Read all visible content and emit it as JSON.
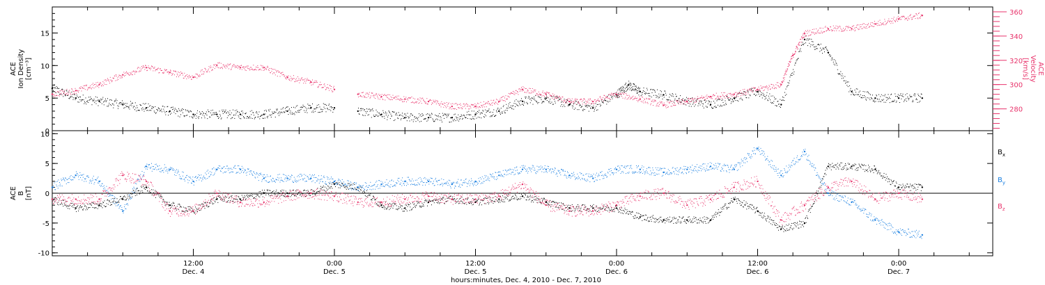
{
  "colors": {
    "black": "#000000",
    "red": "#e8336b",
    "blue": "#1a7fe0"
  },
  "x_axis": {
    "label": "hours:minutes, Dec.  4, 2010 - Dec.  7, 2010",
    "range_hours": [
      0,
      80
    ],
    "ticks": [
      {
        "hour": 12,
        "time": "12:00",
        "date": "Dec. 4"
      },
      {
        "hour": 24,
        "time": "0:00",
        "date": "Dec. 5"
      },
      {
        "hour": 36,
        "time": "12:00",
        "date": "Dec. 5"
      },
      {
        "hour": 48,
        "time": "0:00",
        "date": "Dec. 6"
      },
      {
        "hour": 60,
        "time": "12:00",
        "date": "Dec. 6"
      },
      {
        "hour": 72,
        "time": "0:00",
        "date": "Dec. 7"
      }
    ]
  },
  "chart_data": [
    {
      "type": "scatter",
      "panel": "top",
      "left_axis": {
        "title_lines": [
          "ACE",
          "Ion Density",
          "[cm⁻³]"
        ],
        "ylim": [
          0,
          19
        ],
        "ticks": [
          0,
          5,
          10,
          15
        ]
      },
      "right_axis": {
        "title_lines": [
          "ACE",
          "Velocity",
          "[km/s]"
        ],
        "ylim": [
          262,
          364
        ],
        "ticks": [
          280,
          300,
          320,
          340,
          360
        ]
      },
      "series": [
        {
          "axis": "left",
          "color": "#000000",
          "x": [
            0,
            2,
            4,
            6,
            8,
            10,
            12,
            14,
            16,
            18,
            20,
            22,
            24,
            26,
            28,
            30,
            32,
            34,
            36,
            38,
            40,
            42,
            44,
            46,
            48,
            49,
            50,
            52,
            54,
            56,
            58,
            60,
            62,
            64,
            66,
            68,
            70,
            72,
            74
          ],
          "y": [
            6.5,
            5,
            4.5,
            4,
            3.5,
            3,
            2.5,
            2.5,
            2.5,
            2.5,
            3,
            3.5,
            3.5,
            3,
            2.5,
            2,
            2,
            2,
            2.5,
            3,
            4.5,
            5,
            4,
            3.5,
            5.5,
            7,
            6,
            5.5,
            4.5,
            4,
            5,
            6,
            4,
            14,
            12,
            6,
            5,
            5,
            5
          ],
          "gaps_after": [
            24
          ]
        },
        {
          "axis": "right",
          "color": "#e8336b",
          "x": [
            0,
            2,
            4,
            6,
            8,
            10,
            12,
            14,
            16,
            18,
            20,
            22,
            24,
            26,
            28,
            30,
            32,
            34,
            36,
            38,
            40,
            42,
            44,
            46,
            48,
            50,
            52,
            54,
            56,
            58,
            60,
            62,
            63,
            64,
            66,
            68,
            70,
            72,
            74
          ],
          "y": [
            292,
            295,
            300,
            308,
            314,
            310,
            306,
            316,
            314,
            314,
            306,
            302,
            296,
            292,
            290,
            288,
            286,
            282,
            282,
            286,
            296,
            292,
            286,
            286,
            292,
            288,
            283,
            286,
            290,
            292,
            296,
            300,
            324,
            342,
            346,
            346,
            350,
            354,
            357
          ],
          "gaps_after": [
            24
          ]
        }
      ]
    },
    {
      "type": "scatter",
      "panel": "bottom",
      "left_axis": {
        "title_lines": [
          "ACE",
          "B",
          "[nT]"
        ],
        "ylim": [
          -10.5,
          10.5
        ],
        "ticks": [
          -10,
          -5,
          0,
          5,
          10
        ]
      },
      "legend": {
        "placement": "right",
        "entries": [
          {
            "base": "B",
            "sub": "x",
            "color": "#000000"
          },
          {
            "base": "B",
            "sub": "y",
            "color": "#1a7fe0"
          },
          {
            "base": "B",
            "sub": "z",
            "color": "#e8336b"
          }
        ]
      },
      "zero_line": true,
      "series": [
        {
          "name": "Bx",
          "color": "#000000",
          "x": [
            0,
            2,
            4,
            6,
            8,
            10,
            12,
            14,
            16,
            18,
            20,
            22,
            24,
            26,
            28,
            30,
            32,
            34,
            36,
            38,
            40,
            42,
            44,
            46,
            48,
            50,
            52,
            54,
            56,
            58,
            60,
            62,
            64,
            66,
            68,
            70,
            72,
            74
          ],
          "y": [
            -1,
            -2.5,
            -2,
            -1,
            1,
            -2,
            -3,
            -1,
            -1,
            0,
            0,
            0,
            1.5,
            1,
            -2,
            -2.5,
            -1.5,
            -1,
            -1.5,
            -1,
            -0.5,
            -1.5,
            -2.5,
            -2.5,
            -2.5,
            -4,
            -4.5,
            -4.5,
            -4.5,
            -1,
            -3,
            -6,
            -5,
            4.5,
            4.5,
            4,
            1,
            1
          ],
          "gaps_after": [
            23
          ]
        },
        {
          "name": "By",
          "color": "#1a7fe0",
          "x": [
            0,
            2,
            4,
            6,
            8,
            10,
            12,
            14,
            16,
            18,
            20,
            22,
            24,
            26,
            28,
            30,
            32,
            34,
            36,
            38,
            40,
            42,
            44,
            46,
            48,
            50,
            52,
            54,
            56,
            58,
            60,
            62,
            64,
            66,
            68,
            70,
            72,
            74
          ],
          "y": [
            1,
            3,
            2,
            -3,
            4.5,
            4,
            2,
            4,
            4,
            2.5,
            2.5,
            2.5,
            2,
            1,
            1.5,
            2,
            2,
            1.5,
            2,
            3,
            4,
            4,
            3,
            2.5,
            4,
            4,
            3.5,
            4,
            4.5,
            4,
            7.5,
            3,
            7,
            0,
            -1.5,
            -4.5,
            -6.5,
            -7
          ],
          "gaps_after": [
            23
          ]
        },
        {
          "name": "Bz",
          "color": "#e8336b",
          "x": [
            0,
            2,
            4,
            6,
            8,
            10,
            12,
            14,
            16,
            18,
            20,
            22,
            24,
            26,
            28,
            30,
            32,
            34,
            36,
            38,
            40,
            42,
            44,
            46,
            48,
            50,
            52,
            54,
            56,
            58,
            60,
            62,
            64,
            66,
            68,
            70,
            72,
            74
          ],
          "y": [
            -1,
            -1,
            -1,
            3,
            2,
            -3,
            -3,
            0,
            -1.5,
            -1.5,
            -0.5,
            0,
            -0.5,
            -1.5,
            -1.5,
            -1,
            -0.5,
            -1,
            -1,
            -0.5,
            1.5,
            -2,
            -3,
            -3,
            -2,
            -0.5,
            0,
            -2,
            -1,
            1,
            2,
            -4.5,
            -2,
            1,
            2,
            -1,
            0,
            -1
          ],
          "gaps_after": [
            23
          ]
        }
      ]
    }
  ]
}
